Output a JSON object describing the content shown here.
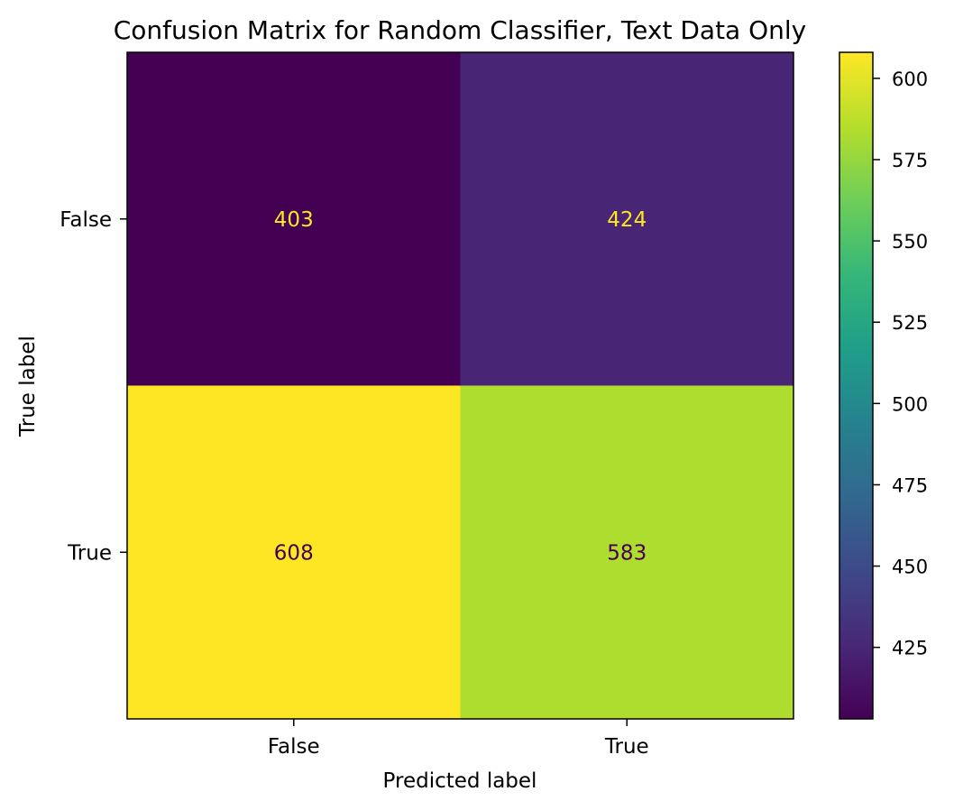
{
  "chart_data": {
    "type": "heatmap",
    "title": "Confusion Matrix for Random Classifier, Text Data Only",
    "xlabel": "Predicted label",
    "ylabel": "True label",
    "x_categories": [
      "False",
      "True"
    ],
    "y_categories": [
      "False",
      "True"
    ],
    "matrix": [
      [
        403,
        424
      ],
      [
        608,
        583
      ]
    ],
    "cell_labels": [
      [
        "403",
        "424"
      ],
      [
        "608",
        "583"
      ]
    ],
    "colormap": "viridis",
    "colorbar": {
      "range": [
        403,
        608
      ],
      "ticks": [
        425,
        450,
        475,
        500,
        525,
        550,
        575,
        600
      ],
      "tick_labels": [
        "425",
        "450",
        "475",
        "500",
        "525",
        "550",
        "575",
        "600"
      ]
    },
    "grid": false
  },
  "colors": {
    "low_text": "#fde725",
    "high_text": "#440154",
    "axis": "#000000"
  }
}
